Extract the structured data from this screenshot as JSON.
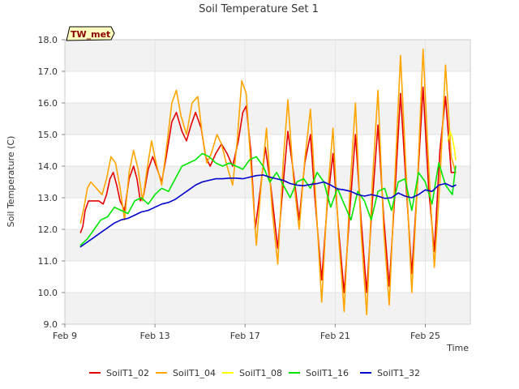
{
  "chart_data": {
    "type": "line",
    "title": "Soil Temperature Set 1",
    "xlabel": "Time",
    "ylabel": "Soil Temperature (C)",
    "badge": "TW_met",
    "x_range": [
      "Feb 9",
      "Feb 27"
    ],
    "xlim_days": [
      9,
      27
    ],
    "ylim": [
      9.0,
      18.0
    ],
    "y_ticks": [
      "9.0",
      "10.0",
      "11.0",
      "12.0",
      "13.0",
      "14.0",
      "15.0",
      "16.0",
      "17.0",
      "18.0"
    ],
    "x_ticks": [
      {
        "label": "Feb 9",
        "day": 9
      },
      {
        "label": "Feb 13",
        "day": 13
      },
      {
        "label": "Feb 17",
        "day": 17
      },
      {
        "label": "Feb 21",
        "day": 21
      },
      {
        "label": "Feb 25",
        "day": 25
      }
    ],
    "grid": true,
    "legend_placement": "bottom",
    "series": [
      {
        "name": "SoilT1_02",
        "color": "#e60000",
        "x": [
          9.7,
          9.8,
          9.9,
          10.05,
          10.3,
          10.5,
          10.7,
          10.85,
          11.0,
          11.15,
          11.3,
          11.45,
          11.65,
          11.85,
          12.05,
          12.2,
          12.35,
          12.5,
          12.7,
          12.9,
          13.1,
          13.3,
          13.5,
          13.75,
          13.95,
          14.2,
          14.4,
          14.6,
          14.8,
          15.05,
          15.25,
          15.45,
          15.7,
          15.95,
          16.2,
          16.45,
          16.7,
          16.9,
          17.05,
          17.25,
          17.45,
          17.7,
          17.9,
          18.15,
          18.45,
          18.7,
          18.9,
          19.15,
          19.4,
          19.65,
          19.9,
          20.1,
          20.4,
          20.65,
          20.9,
          21.15,
          21.4,
          21.65,
          21.9,
          22.15,
          22.4,
          22.65,
          22.9,
          23.15,
          23.4,
          23.65,
          23.9,
          24.15,
          24.4,
          24.65,
          24.9,
          25.15,
          25.4,
          25.65,
          25.9,
          26.15,
          26.35
        ],
        "values": [
          11.9,
          12.1,
          12.6,
          12.9,
          12.9,
          12.9,
          12.8,
          13.1,
          13.6,
          13.8,
          13.4,
          12.9,
          12.6,
          13.6,
          14.0,
          13.6,
          12.9,
          13.1,
          13.9,
          14.3,
          13.9,
          13.5,
          14.3,
          15.4,
          15.7,
          15.1,
          14.8,
          15.3,
          15.7,
          15.2,
          14.3,
          14.0,
          14.4,
          14.7,
          14.4,
          14.0,
          14.8,
          15.7,
          15.9,
          14.5,
          12.0,
          13.4,
          14.6,
          13.3,
          11.4,
          13.5,
          15.1,
          13.8,
          12.3,
          14.1,
          15.0,
          13.0,
          10.4,
          12.8,
          14.4,
          12.0,
          10.0,
          12.6,
          15.0,
          12.3,
          10.0,
          12.9,
          15.3,
          12.4,
          10.2,
          13.1,
          16.3,
          13.4,
          10.6,
          13.4,
          16.5,
          13.3,
          11.3,
          14.5,
          16.2,
          13.8,
          13.8
        ]
      },
      {
        "name": "SoilT1_04",
        "color": "#ffa500",
        "x": [
          9.7,
          9.85,
          10.0,
          10.15,
          10.4,
          10.65,
          10.85,
          11.05,
          11.25,
          11.45,
          11.65,
          11.85,
          12.05,
          12.25,
          12.45,
          12.65,
          12.85,
          13.05,
          13.3,
          13.55,
          13.75,
          13.95,
          14.15,
          14.4,
          14.65,
          14.9,
          15.1,
          15.3,
          15.5,
          15.75,
          15.95,
          16.2,
          16.45,
          16.65,
          16.85,
          17.05,
          17.25,
          17.5,
          17.7,
          17.95,
          18.2,
          18.45,
          18.7,
          18.9,
          19.15,
          19.4,
          19.65,
          19.9,
          20.15,
          20.4,
          20.65,
          20.9,
          21.15,
          21.4,
          21.65,
          21.9,
          22.15,
          22.4,
          22.65,
          22.9,
          23.15,
          23.4,
          23.65,
          23.9,
          24.15,
          24.4,
          24.65,
          24.9,
          25.15,
          25.4,
          25.65,
          25.9,
          26.15,
          26.35
        ],
        "values": [
          12.2,
          12.7,
          13.3,
          13.5,
          13.3,
          13.1,
          13.6,
          14.3,
          14.1,
          13.3,
          12.3,
          13.8,
          14.5,
          13.9,
          12.9,
          13.9,
          14.8,
          14.1,
          13.4,
          14.8,
          16.0,
          16.4,
          15.6,
          15.0,
          16.0,
          16.2,
          15.0,
          14.1,
          14.4,
          15.0,
          14.7,
          14.0,
          13.4,
          14.8,
          16.7,
          16.3,
          14.1,
          11.5,
          13.3,
          15.2,
          12.6,
          10.9,
          14.2,
          16.1,
          13.6,
          12.0,
          14.2,
          15.8,
          12.8,
          9.7,
          13.0,
          15.2,
          11.8,
          9.4,
          13.2,
          16.0,
          11.9,
          9.3,
          13.5,
          16.4,
          12.0,
          9.6,
          13.6,
          17.5,
          13.8,
          10.0,
          13.4,
          17.7,
          14.0,
          10.8,
          13.5,
          17.2,
          14.3,
          13.8
        ]
      },
      {
        "name": "SoilT1_08",
        "color": "#ffff00",
        "x": [
          26.0,
          26.1,
          26.2,
          26.3,
          26.35
        ],
        "values": [
          14.8,
          15.1,
          14.9,
          14.5,
          14.2
        ]
      },
      {
        "name": "SoilT1_16",
        "color": "#00e600",
        "x": [
          9.7,
          10.0,
          10.3,
          10.6,
          10.9,
          11.2,
          11.5,
          11.8,
          12.1,
          12.4,
          12.7,
          13.0,
          13.3,
          13.6,
          13.9,
          14.2,
          14.5,
          14.8,
          15.1,
          15.4,
          15.7,
          16.0,
          16.3,
          16.6,
          16.9,
          17.2,
          17.5,
          17.8,
          18.1,
          18.4,
          18.7,
          19.0,
          19.3,
          19.6,
          19.9,
          20.2,
          20.5,
          20.8,
          21.1,
          21.4,
          21.7,
          22.0,
          22.3,
          22.6,
          22.9,
          23.2,
          23.5,
          23.8,
          24.1,
          24.4,
          24.7,
          25.0,
          25.3,
          25.6,
          25.9,
          26.2,
          26.35
        ],
        "values": [
          11.5,
          11.7,
          12.0,
          12.3,
          12.4,
          12.7,
          12.6,
          12.5,
          12.9,
          13.0,
          12.8,
          13.1,
          13.3,
          13.2,
          13.6,
          14.0,
          14.1,
          14.2,
          14.4,
          14.3,
          14.1,
          14.0,
          14.1,
          14.0,
          13.9,
          14.2,
          14.3,
          14.0,
          13.5,
          13.8,
          13.4,
          13.0,
          13.5,
          13.6,
          13.3,
          13.8,
          13.5,
          12.7,
          13.3,
          12.8,
          12.3,
          13.2,
          12.9,
          12.3,
          13.2,
          13.3,
          12.6,
          13.5,
          13.6,
          12.6,
          13.8,
          13.5,
          12.8,
          14.1,
          13.4,
          13.1,
          14.0
        ]
      },
      {
        "name": "SoilT1_32",
        "color": "#0000cc",
        "x": [
          9.7,
          10.0,
          10.3,
          10.6,
          10.9,
          11.2,
          11.5,
          11.8,
          12.1,
          12.4,
          12.7,
          13.0,
          13.3,
          13.6,
          13.9,
          14.2,
          14.5,
          14.8,
          15.1,
          15.4,
          15.7,
          16.0,
          16.3,
          16.6,
          16.9,
          17.2,
          17.5,
          17.8,
          18.1,
          18.4,
          18.7,
          19.0,
          19.3,
          19.6,
          19.9,
          20.2,
          20.5,
          20.8,
          21.1,
          21.4,
          21.7,
          22.0,
          22.3,
          22.6,
          22.9,
          23.2,
          23.5,
          23.8,
          24.1,
          24.4,
          24.7,
          25.0,
          25.3,
          25.6,
          25.9,
          26.2,
          26.35
        ],
        "values": [
          11.45,
          11.6,
          11.75,
          11.9,
          12.05,
          12.2,
          12.3,
          12.35,
          12.45,
          12.55,
          12.6,
          12.7,
          12.8,
          12.85,
          12.95,
          13.1,
          13.25,
          13.4,
          13.5,
          13.55,
          13.6,
          13.6,
          13.62,
          13.62,
          13.6,
          13.65,
          13.7,
          13.72,
          13.65,
          13.6,
          13.55,
          13.45,
          13.4,
          13.38,
          13.42,
          13.45,
          13.5,
          13.4,
          13.28,
          13.25,
          13.2,
          13.1,
          13.05,
          13.1,
          13.05,
          12.98,
          13.0,
          13.15,
          13.05,
          13.0,
          13.1,
          13.25,
          13.2,
          13.4,
          13.45,
          13.35,
          13.4
        ]
      }
    ]
  }
}
